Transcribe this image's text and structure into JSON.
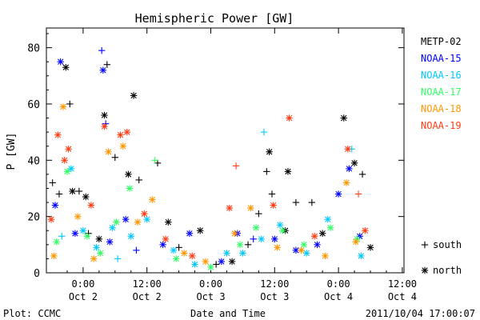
{
  "chart_data": {
    "type": "scatter",
    "title": "Hemispheric Power [GW]",
    "ylabel": "P [GW]",
    "xlabel": "Date and Time",
    "ylim": [
      0,
      87
    ],
    "xlim": [
      "2011-10-01 18:00",
      "2011-10-04 15:15"
    ],
    "grid": false,
    "legend_position": "right",
    "yticks": [
      0,
      20,
      40,
      60,
      80
    ],
    "xticks": [
      {
        "time": "0:00",
        "date": "Oct 2"
      },
      {
        "time": "12:00",
        "date": "Oct 2"
      },
      {
        "time": "0:00",
        "date": "Oct 3"
      },
      {
        "time": "12:00",
        "date": "Oct 3"
      },
      {
        "time": "0:00",
        "date": "Oct 4"
      },
      {
        "time": "12:00",
        "date": "Oct 4"
      }
    ],
    "marker_legend": [
      {
        "marker": "+",
        "label": "south"
      },
      {
        "marker": "*",
        "label": "north"
      }
    ],
    "series": [
      {
        "name": "METP-02",
        "color": "#000000",
        "points": [
          [
            "2011-10-01 18:15",
            32,
            "+"
          ],
          [
            "2011-10-01 19:30",
            28,
            "+"
          ],
          [
            "2011-10-01 20:45",
            73,
            "*"
          ],
          [
            "2011-10-01 21:30",
            60,
            "+"
          ],
          [
            "2011-10-01 22:00",
            29,
            "*"
          ],
          [
            "2011-10-01 23:15",
            29,
            "+"
          ],
          [
            "2011-10-02 00:30",
            27,
            "*"
          ],
          [
            "2011-10-02 01:00",
            14,
            "+"
          ],
          [
            "2011-10-02 03:00",
            12,
            "*"
          ],
          [
            "2011-10-02 04:00",
            56,
            "*"
          ],
          [
            "2011-10-02 04:30",
            74,
            "+"
          ],
          [
            "2011-10-02 06:00",
            41,
            "+"
          ],
          [
            "2011-10-02 08:30",
            35,
            "*"
          ],
          [
            "2011-10-02 09:30",
            63,
            "*"
          ],
          [
            "2011-10-02 10:30",
            33,
            "+"
          ],
          [
            "2011-10-02 14:00",
            39,
            "+"
          ],
          [
            "2011-10-02 16:00",
            18,
            "*"
          ],
          [
            "2011-10-02 18:00",
            9,
            "+"
          ],
          [
            "2011-10-02 22:00",
            15,
            "*"
          ],
          [
            "2011-10-03 01:00",
            3,
            "+"
          ],
          [
            "2011-10-03 04:00",
            4,
            "*"
          ],
          [
            "2011-10-03 07:00",
            10,
            "+"
          ],
          [
            "2011-10-03 09:00",
            21,
            "+"
          ],
          [
            "2011-10-03 10:30",
            36,
            "+"
          ],
          [
            "2011-10-03 11:00",
            43,
            "*"
          ],
          [
            "2011-10-03 11:30",
            28,
            "+"
          ],
          [
            "2011-10-03 14:00",
            15,
            "*"
          ],
          [
            "2011-10-03 14:30",
            36,
            "*"
          ],
          [
            "2011-10-03 16:00",
            25,
            "+"
          ],
          [
            "2011-10-03 19:00",
            25,
            "+"
          ],
          [
            "2011-10-03 21:00",
            14,
            "*"
          ],
          [
            "2011-10-04 01:00",
            55,
            "*"
          ],
          [
            "2011-10-04 03:00",
            39,
            "*"
          ],
          [
            "2011-10-04 04:30",
            35,
            "+"
          ],
          [
            "2011-10-04 06:00",
            9,
            "*"
          ]
        ]
      },
      {
        "name": "NOAA-15",
        "color": "#0000ff",
        "points": [
          [
            "2011-10-01 18:45",
            24,
            "*"
          ],
          [
            "2011-10-01 19:45",
            75,
            "*"
          ],
          [
            "2011-10-01 22:30",
            14,
            "*"
          ],
          [
            "2011-10-02 03:30",
            79,
            "+"
          ],
          [
            "2011-10-02 03:45",
            72,
            "*"
          ],
          [
            "2011-10-02 04:15",
            53,
            "+"
          ],
          [
            "2011-10-02 05:00",
            11,
            "*"
          ],
          [
            "2011-10-02 08:00",
            19,
            "*"
          ],
          [
            "2011-10-02 10:00",
            8,
            "+"
          ],
          [
            "2011-10-02 15:00",
            10,
            "*"
          ],
          [
            "2011-10-02 20:00",
            14,
            "*"
          ],
          [
            "2011-10-03 02:00",
            4,
            "*"
          ],
          [
            "2011-10-03 05:00",
            14,
            "*"
          ],
          [
            "2011-10-03 08:00",
            12,
            "+"
          ],
          [
            "2011-10-03 12:00",
            12,
            "*"
          ],
          [
            "2011-10-03 16:00",
            8,
            "*"
          ],
          [
            "2011-10-03 20:00",
            10,
            "*"
          ],
          [
            "2011-10-04 00:00",
            28,
            "*"
          ],
          [
            "2011-10-04 02:00",
            37,
            "*"
          ],
          [
            "2011-10-04 04:00",
            13,
            "*"
          ]
        ]
      },
      {
        "name": "NOAA-16",
        "color": "#00c8ff",
        "points": [
          [
            "2011-10-01 20:00",
            13,
            "+"
          ],
          [
            "2011-10-01 21:45",
            37,
            "*"
          ],
          [
            "2011-10-02 00:00",
            15,
            "*"
          ],
          [
            "2011-10-02 02:30",
            9,
            "*"
          ],
          [
            "2011-10-02 05:30",
            16,
            "*"
          ],
          [
            "2011-10-02 06:30",
            5,
            "+"
          ],
          [
            "2011-10-02 09:00",
            13,
            "*"
          ],
          [
            "2011-10-02 12:00",
            19,
            "*"
          ],
          [
            "2011-10-02 17:00",
            8,
            "*"
          ],
          [
            "2011-10-02 21:00",
            3,
            "*"
          ],
          [
            "2011-10-03 03:00",
            7,
            "*"
          ],
          [
            "2011-10-03 06:00",
            7,
            "*"
          ],
          [
            "2011-10-03 09:30",
            12,
            "*"
          ],
          [
            "2011-10-03 10:00",
            50,
            "+"
          ],
          [
            "2011-10-03 13:00",
            17,
            "*"
          ],
          [
            "2011-10-03 18:00",
            7,
            "*"
          ],
          [
            "2011-10-03 22:00",
            19,
            "*"
          ],
          [
            "2011-10-04 02:30",
            44,
            "+"
          ],
          [
            "2011-10-04 04:15",
            6,
            "*"
          ]
        ]
      },
      {
        "name": "NOAA-17",
        "color": "#32ff64",
        "points": [
          [
            "2011-10-01 19:00",
            11,
            "*"
          ],
          [
            "2011-10-01 21:00",
            36,
            "*"
          ],
          [
            "2011-10-02 00:45",
            13,
            "*"
          ],
          [
            "2011-10-02 03:15",
            7,
            "*"
          ],
          [
            "2011-10-02 06:15",
            18,
            "*"
          ],
          [
            "2011-10-02 08:45",
            30,
            "*"
          ],
          [
            "2011-10-02 13:30",
            40,
            "+"
          ],
          [
            "2011-10-02 17:30",
            5,
            "*"
          ],
          [
            "2011-10-03 00:00",
            2,
            "*"
          ],
          [
            "2011-10-03 05:30",
            10,
            "*"
          ],
          [
            "2011-10-03 08:30",
            16,
            "*"
          ],
          [
            "2011-10-03 13:30",
            15,
            "*"
          ],
          [
            "2011-10-03 17:30",
            10,
            "*"
          ],
          [
            "2011-10-03 22:30",
            16,
            "*"
          ],
          [
            "2011-10-04 03:30",
            12,
            "*"
          ]
        ]
      },
      {
        "name": "NOAA-18",
        "color": "#ff9600",
        "points": [
          [
            "2011-10-01 18:30",
            6,
            "*"
          ],
          [
            "2011-10-01 20:15",
            59,
            "*"
          ],
          [
            "2011-10-01 23:00",
            20,
            "*"
          ],
          [
            "2011-10-02 02:00",
            5,
            "*"
          ],
          [
            "2011-10-02 04:45",
            43,
            "*"
          ],
          [
            "2011-10-02 07:30",
            45,
            "*"
          ],
          [
            "2011-10-02 10:15",
            18,
            "*"
          ],
          [
            "2011-10-02 13:00",
            26,
            "*"
          ],
          [
            "2011-10-02 19:00",
            7,
            "*"
          ],
          [
            "2011-10-02 23:00",
            4,
            "*"
          ],
          [
            "2011-10-03 04:30",
            14,
            "*"
          ],
          [
            "2011-10-03 07:30",
            23,
            "*"
          ],
          [
            "2011-10-03 12:30",
            9,
            "*"
          ],
          [
            "2011-10-03 17:00",
            8,
            "*"
          ],
          [
            "2011-10-03 21:30",
            6,
            "*"
          ],
          [
            "2011-10-04 01:30",
            32,
            "*"
          ],
          [
            "2011-10-04 03:15",
            11,
            "*"
          ]
        ]
      },
      {
        "name": "NOAA-19",
        "color": "#ff3c14",
        "points": [
          [
            "2011-10-01 18:00",
            19,
            "*"
          ],
          [
            "2011-10-01 19:15",
            49,
            "*"
          ],
          [
            "2011-10-01 20:30",
            40,
            "*"
          ],
          [
            "2011-10-01 21:15",
            44,
            "*"
          ],
          [
            "2011-10-02 01:30",
            24,
            "*"
          ],
          [
            "2011-10-02 04:00",
            52,
            "*"
          ],
          [
            "2011-10-02 07:00",
            49,
            "*"
          ],
          [
            "2011-10-02 08:15",
            50,
            "*"
          ],
          [
            "2011-10-02 11:30",
            21,
            "*"
          ],
          [
            "2011-10-02 15:30",
            12,
            "*"
          ],
          [
            "2011-10-02 20:30",
            6,
            "*"
          ],
          [
            "2011-10-03 03:30",
            23,
            "*"
          ],
          [
            "2011-10-03 04:45",
            38,
            "+"
          ],
          [
            "2011-10-03 11:45",
            24,
            "*"
          ],
          [
            "2011-10-03 14:45",
            55,
            "*"
          ],
          [
            "2011-10-03 19:30",
            13,
            "*"
          ],
          [
            "2011-10-04 01:45",
            44,
            "*"
          ],
          [
            "2011-10-04 03:45",
            28,
            "+"
          ],
          [
            "2011-10-04 05:00",
            15,
            "*"
          ]
        ]
      }
    ]
  },
  "footer": {
    "plot_label": "Plot: CCMC",
    "timestamp": "2011/10/04 17:00:07"
  }
}
